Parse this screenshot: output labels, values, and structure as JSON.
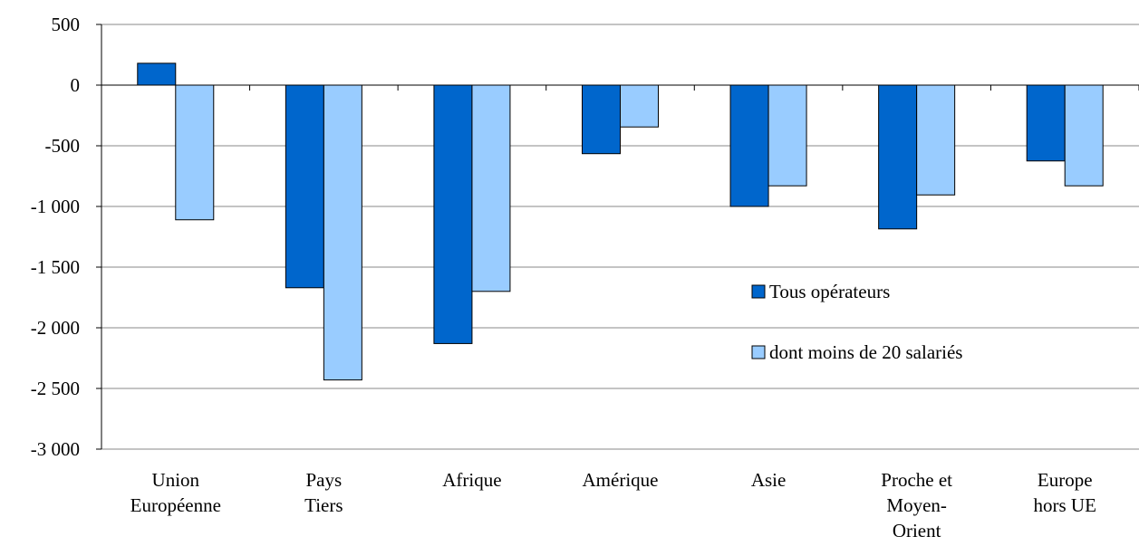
{
  "chart_data": {
    "type": "bar",
    "categories": [
      "Union\nEuropéenne",
      "Pays\nTiers",
      "Afrique",
      "Amérique",
      "Asie",
      "Proche et\nMoyen-\nOrient",
      "Europe\nhors UE"
    ],
    "series": [
      {
        "name": "Tous opérateurs",
        "color": "#0066cc",
        "values": [
          180,
          -1670,
          -2130,
          -565,
          -1000,
          -1185,
          -625
        ]
      },
      {
        "name": "dont moins de 20 salariés",
        "color": "#99ccff",
        "values": [
          -1110,
          -2430,
          -1700,
          -345,
          -830,
          -905,
          -830
        ]
      }
    ],
    "ylim": [
      -3000,
      500
    ],
    "yticks": [
      500,
      0,
      -500,
      {
        "value": -1000,
        "label": "-1 000"
      },
      {
        "value": -1500,
        "label": "-1 500"
      },
      {
        "value": -2000,
        "label": "-2 000"
      },
      {
        "value": -2500,
        "label": "-2 500"
      },
      {
        "value": -3000,
        "label": "-3 000"
      }
    ],
    "grid": true
  }
}
